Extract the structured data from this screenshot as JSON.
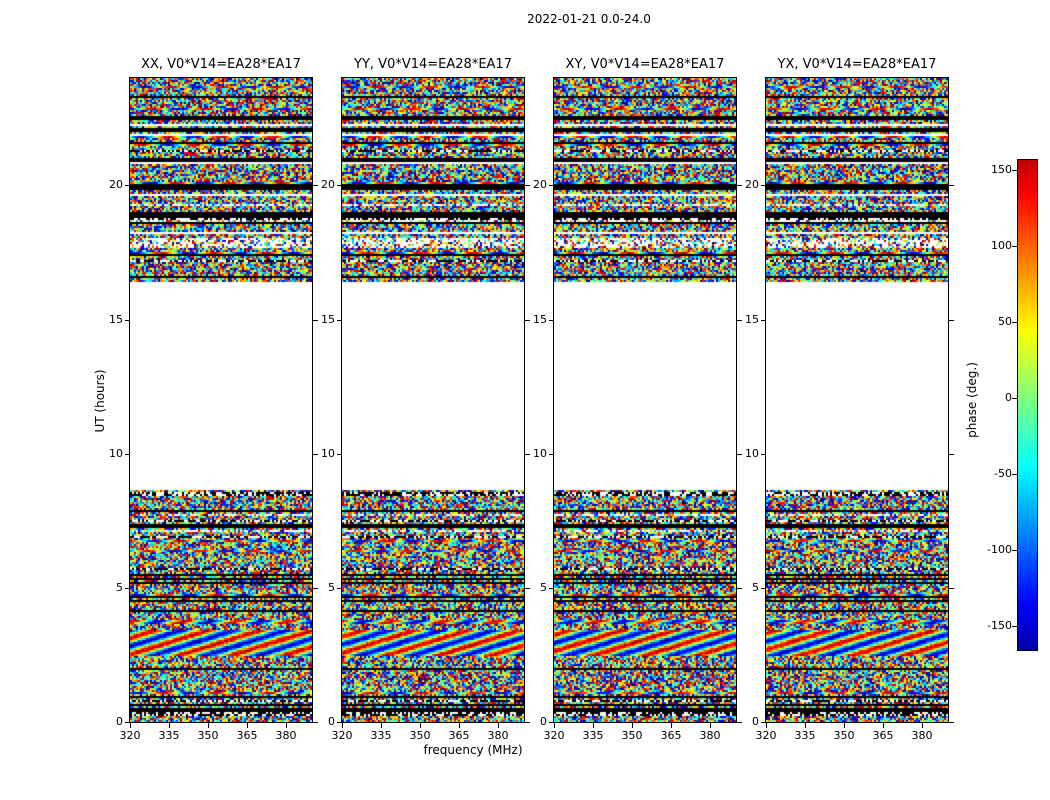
{
  "chart_data": {
    "type": "heatmap",
    "title": "2022-01-21 0.0-24.0",
    "xlabel": "frequency (MHz)",
    "ylabel": "UT (hours)",
    "colormap": "jet",
    "panels": [
      {
        "title": "XX, V0*V14=EA28*EA17",
        "correlation": "XX",
        "baseline": "V0*V14=EA28*EA17"
      },
      {
        "title": "YY, V0*V14=EA28*EA17",
        "correlation": "YY",
        "baseline": "V0*V14=EA28*EA17"
      },
      {
        "title": "XY, V0*V14=EA28*EA17",
        "correlation": "XY",
        "baseline": "V0*V14=EA28*EA17"
      },
      {
        "title": "YX, V0*V14=EA28*EA17",
        "correlation": "YX",
        "baseline": "V0*V14=EA28*EA17"
      }
    ],
    "x_ticks": [
      320,
      335,
      350,
      365,
      380
    ],
    "y_ticks": [
      0,
      5,
      10,
      15,
      20
    ],
    "x_range_mhz": [
      320,
      390
    ],
    "y_range_hours": [
      0,
      24
    ],
    "colorbar": {
      "label": "phase (deg.)",
      "ticks": [
        -150,
        -100,
        -50,
        0,
        50,
        100,
        150
      ],
      "range": [
        -165,
        157
      ]
    },
    "data_bands_hours": [
      [
        0,
        8.65
      ],
      [
        16.37,
        24
      ]
    ],
    "gap_hours": [
      8.65,
      16.37
    ],
    "flagged_hours_black": [
      0.45,
      0.95,
      2.0,
      4.5,
      5.2,
      5.32,
      7.3,
      7.85,
      16.6,
      17.4,
      18.85,
      18.97,
      19.9,
      20.0,
      21.0,
      22.0,
      22.5,
      23.3
    ],
    "dotted_hours": [
      0.3,
      7.5,
      8.5,
      21.3
    ],
    "sparse_hours": [
      [
        17.7,
        18.05
      ]
    ],
    "wavy_hours": [
      [
        2.45,
        3.45
      ]
    ]
  }
}
